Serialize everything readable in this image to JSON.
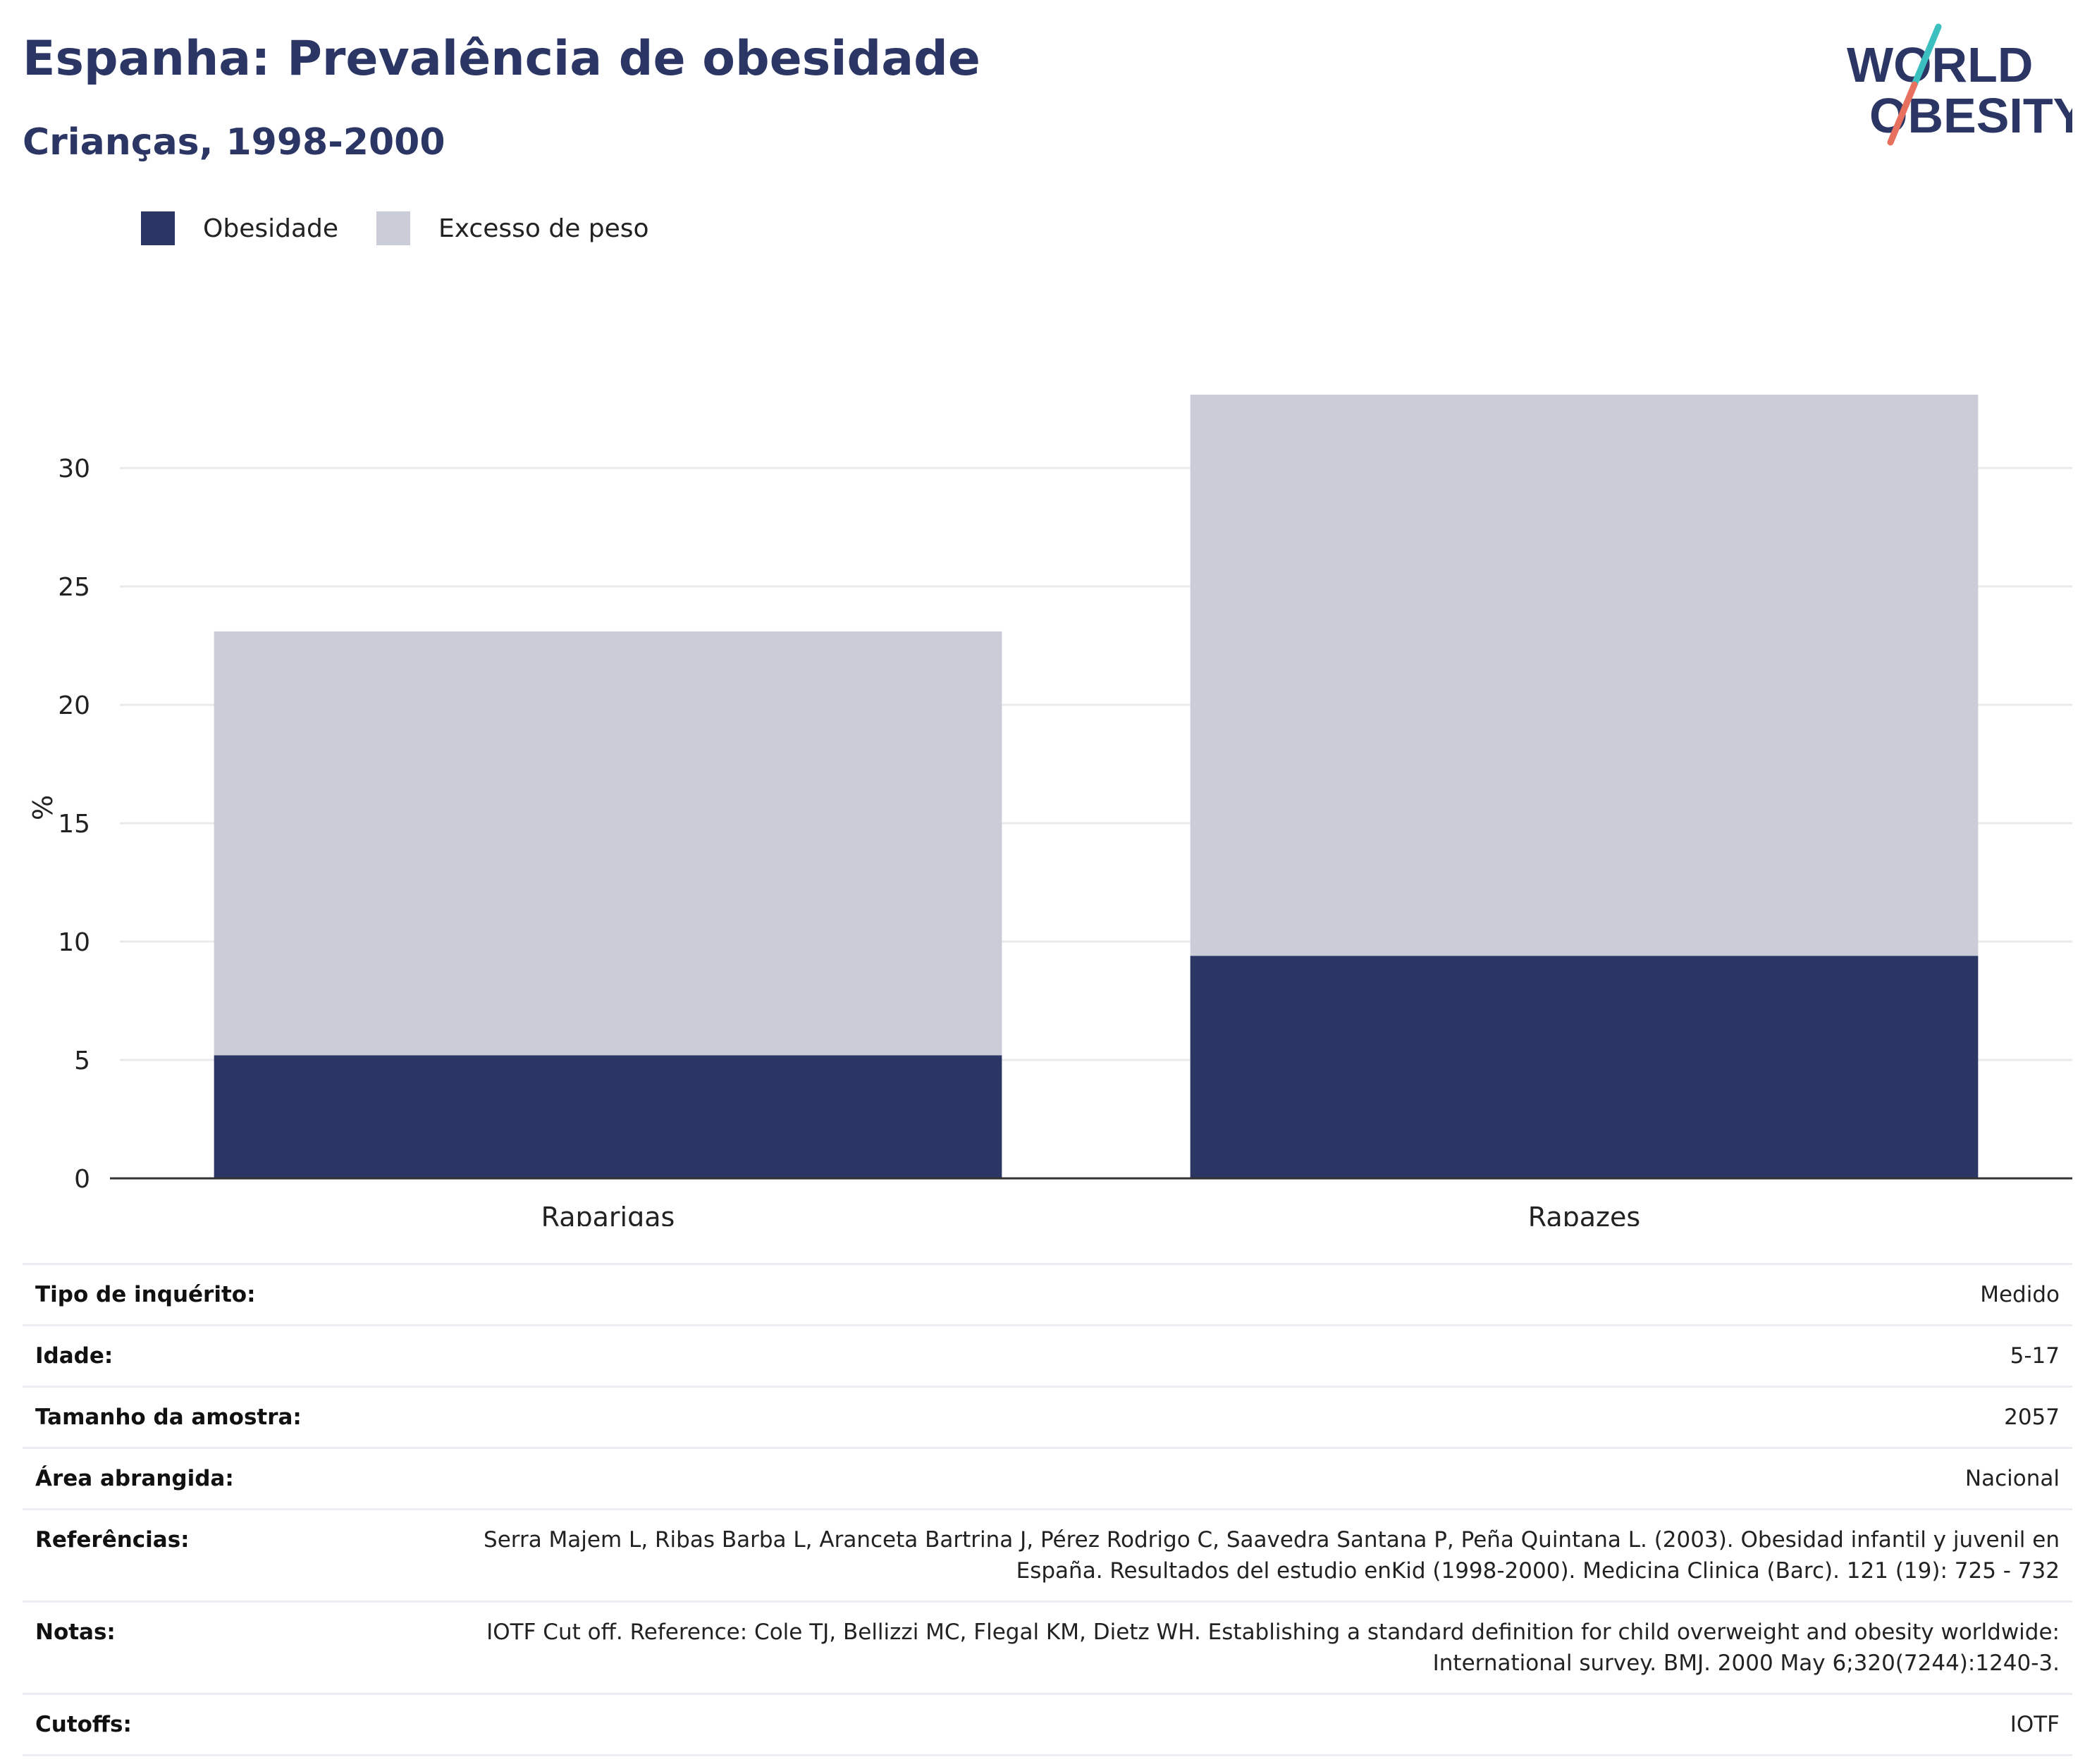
{
  "header": {
    "title": "Espanha: Prevalência de obesidade",
    "subtitle": "Crianças, 1998-2000"
  },
  "logo": {
    "line1": "WORLD",
    "line2": "OBESITY"
  },
  "colors": {
    "title": "#2b3664",
    "obesity": "#2b3664",
    "overweight": "#cacdd8",
    "grid": "#e9eaef",
    "axis": "#333333",
    "logo_teal": "#3bbfbf",
    "logo_coral": "#e8705f"
  },
  "chart_data": {
    "type": "bar",
    "stacked": true,
    "categories": [
      "Raparigas",
      "Rapazes"
    ],
    "series": [
      {
        "name": "Obesidade",
        "values": [
          5.2,
          9.4
        ]
      },
      {
        "name": "Excesso de peso",
        "values": [
          17.9,
          23.7
        ]
      }
    ],
    "totals": [
      23.1,
      33.1
    ],
    "ylabel": "%",
    "yticks": [
      0,
      5,
      10,
      15,
      20,
      25,
      30
    ],
    "ylim": [
      0,
      33.1
    ],
    "grid": true,
    "legend_position": "top-left"
  },
  "info": [
    {
      "label": "Tipo de inquérito:",
      "value": "Medido"
    },
    {
      "label": "Idade:",
      "value": "5-17"
    },
    {
      "label": "Tamanho da amostra:",
      "value": "2057"
    },
    {
      "label": "Área abrangida:",
      "value": "Nacional"
    },
    {
      "label": "Referências:",
      "value": "Serra Majem L, Ribas Barba L, Aranceta Bartrina J, Pérez Rodrigo C, Saavedra Santana P, Peña Quintana L. (2003). Obesidad infantil y juvenil en España. Resultados del estudio enKid (1998-2000). Medicina Clinica (Barc). 121 (19): 725 - 732"
    },
    {
      "label": "Notas:",
      "value": "IOTF Cut off. Reference: Cole TJ, Bellizzi MC, Flegal KM, Dietz WH. Establishing a standard definition for child overweight and obesity worldwide: International survey. BMJ. 2000 May 6;320(7244):1240-3."
    },
    {
      "label": "Cutoffs:",
      "value": "IOTF"
    }
  ]
}
